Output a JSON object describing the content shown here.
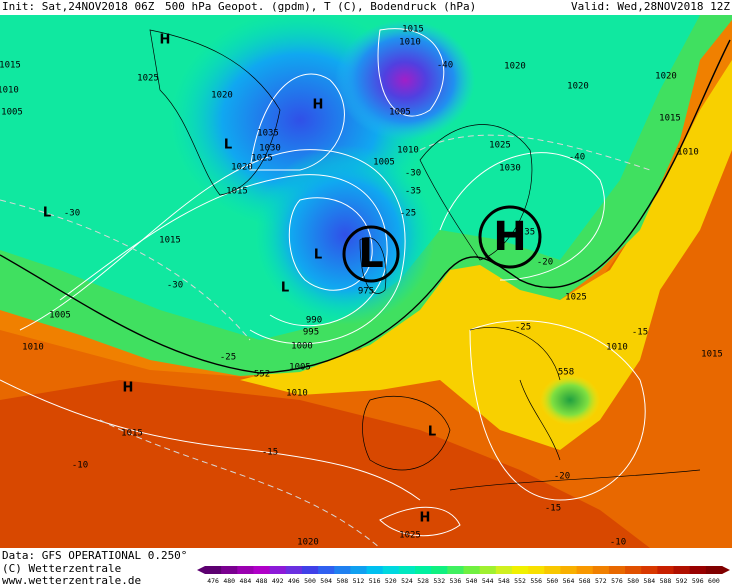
{
  "header": {
    "init": "Init: Sat,24NOV2018 06Z",
    "title": "500 hPa Geopot. (gpdm), T (C), Bodendruck (hPa)",
    "valid": "Valid: Wed,28NOV2018 12Z"
  },
  "footer": {
    "source": "Data: GFS OPERATIONAL 0.250°",
    "copyright": "(C) Wetterzentrale",
    "url": "www.wetterzentrale.de"
  },
  "centers": {
    "low": "L",
    "high": "H"
  },
  "map_labels": [
    "H",
    "1015",
    "1025",
    "1020",
    "H",
    "1035",
    "1030",
    "1025",
    "1020",
    "1015",
    "1010",
    "1005",
    "L",
    "-30",
    "1015",
    "-30",
    "L",
    "L",
    "1005",
    "1010",
    "-25",
    "552",
    "1005",
    "1000",
    "995",
    "990",
    "H",
    "1010",
    "1015",
    "-10",
    "-15",
    "L",
    "H",
    "1025",
    "1020",
    "1015",
    "1010",
    "1005",
    "-40",
    "1020",
    "1020",
    "1020",
    "1015",
    "1010",
    "1025",
    "1030",
    "1010",
    "1005",
    "-40",
    "-35",
    "-20",
    "1025",
    "-25",
    "1010",
    "1015",
    "-15",
    "558",
    "-20",
    "-15",
    "-10",
    "-35",
    "-30",
    "-25",
    "975",
    "L"
  ],
  "colorbar": {
    "labels": [
      476,
      480,
      484,
      488,
      492,
      496,
      500,
      504,
      508,
      512,
      516,
      520,
      524,
      528,
      532,
      536,
      540,
      544,
      548,
      552,
      556,
      560,
      564,
      568,
      572,
      576,
      580,
      584,
      588,
      592,
      596,
      600
    ],
    "colors": [
      "#5c0070",
      "#7a0090",
      "#9a00b0",
      "#b000c8",
      "#8c1ad8",
      "#6a30e0",
      "#4040e8",
      "#3060f0",
      "#2080f0",
      "#10a0f0",
      "#00c0f0",
      "#00d8e0",
      "#00e8c0",
      "#00f0a0",
      "#10f080",
      "#40f060",
      "#70f040",
      "#a0f030",
      "#d0f020",
      "#f0f000",
      "#f8e000",
      "#f8c800",
      "#f8b000",
      "#f89800",
      "#f08000",
      "#e86800",
      "#e05000",
      "#d83800",
      "#c82000",
      "#b01000",
      "#980000",
      "#800000"
    ]
  }
}
